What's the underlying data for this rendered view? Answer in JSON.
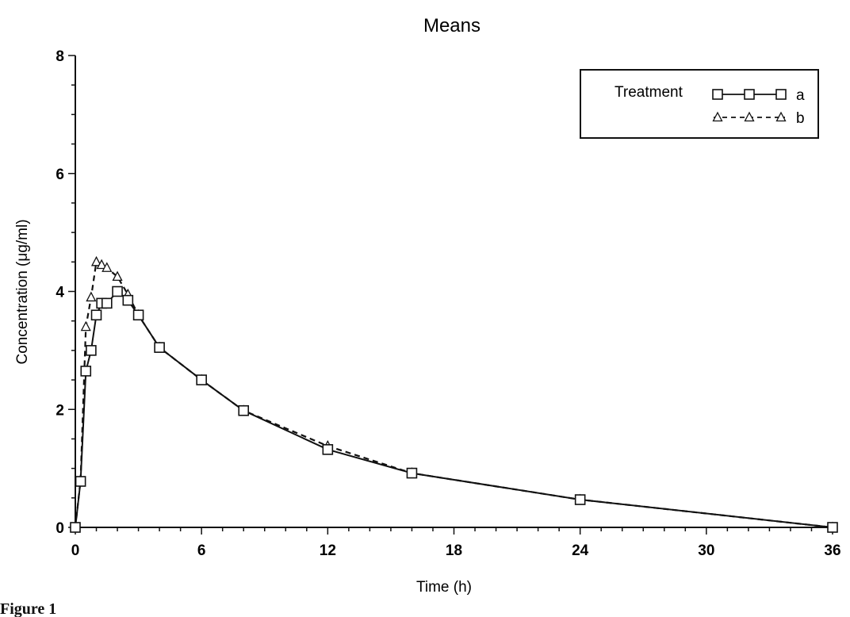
{
  "chart_data": {
    "type": "line",
    "title": "Means",
    "xlabel": "Time (h)",
    "ylabel": "Concentration (μg/ml)",
    "xlim": [
      0,
      36
    ],
    "ylim": [
      0,
      8
    ],
    "xticks": [
      0,
      6,
      12,
      18,
      24,
      30,
      36
    ],
    "yticks": [
      0,
      2,
      4,
      6,
      8
    ],
    "grid": false,
    "legend": {
      "title": "Treatment",
      "placement": "top-right"
    },
    "series": [
      {
        "name": "a",
        "line": "solid",
        "marker": "square",
        "x": [
          0,
          0.25,
          0.5,
          0.75,
          1,
          1.25,
          1.5,
          2,
          2.5,
          3,
          4,
          6,
          8,
          12,
          16,
          24,
          36
        ],
        "y": [
          0,
          0.78,
          2.65,
          3.0,
          3.6,
          3.8,
          3.8,
          4.0,
          3.85,
          3.6,
          3.05,
          2.5,
          1.98,
          1.32,
          0.92,
          0.47,
          0.0
        ]
      },
      {
        "name": "b",
        "line": "dashed",
        "marker": "triangle",
        "x": [
          0,
          0.25,
          0.5,
          0.75,
          1,
          1.25,
          1.5,
          2,
          2.5,
          3,
          4,
          6,
          8,
          12,
          16,
          24,
          36
        ],
        "y": [
          0,
          0.8,
          3.4,
          3.9,
          4.5,
          4.45,
          4.4,
          4.25,
          3.95,
          3.6,
          3.05,
          2.5,
          1.98,
          1.38,
          0.92,
          0.47,
          0.0
        ]
      }
    ]
  },
  "footer_label": "Figure 1"
}
